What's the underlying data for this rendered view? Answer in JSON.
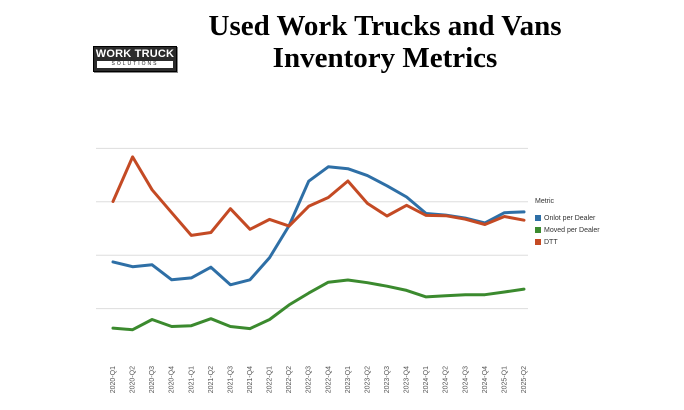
{
  "header": {
    "title_line1": "Used Work Trucks and Vans",
    "title_line2": "Inventory Metrics",
    "logo_line1": "WORK TRUCK",
    "logo_line2": "SOLUTIONS"
  },
  "colors": {
    "onlot": "#2e6fa6",
    "moved": "#3b8a2e",
    "dtt": "#c44a24",
    "grid": "#dddddd"
  },
  "chart_data": {
    "type": "line",
    "title": "Used Work Trucks and Vans Inventory Metrics",
    "categories": [
      "2020-Q1",
      "2020-Q2",
      "2020-Q3",
      "2020-Q4",
      "2021-Q1",
      "2021-Q2",
      "2021-Q3",
      "2021-Q4",
      "2022-Q1",
      "2022-Q2",
      "2022-Q3",
      "2022-Q4",
      "2023-Q1",
      "2023-Q2",
      "2023-Q3",
      "2023-Q4",
      "2024-Q1",
      "2024-Q2",
      "2024-Q3",
      "2024-Q4",
      "2025-Q1",
      "2025-Q2"
    ],
    "ylim": [
      0,
      100
    ],
    "gridlines": [
      20,
      40,
      60,
      80
    ],
    "grid": true,
    "legend": {
      "title": "Metric",
      "placement": "right"
    },
    "series": [
      {
        "name": "Onlot per Dealer",
        "color_key": "onlot",
        "values": [
          37.5,
          35.7,
          36.4,
          30.8,
          31.5,
          35.5,
          28.9,
          30.8,
          39.1,
          51.1,
          67.7,
          73.1,
          72.4,
          69.8,
          66.0,
          61.8,
          55.6,
          55.0,
          53.9,
          52.1,
          55.9,
          56.2
        ]
      },
      {
        "name": "Moved per Dealer",
        "color_key": "moved",
        "values": [
          12.7,
          12.1,
          15.9,
          13.3,
          13.6,
          16.2,
          13.3,
          12.5,
          15.9,
          21.4,
          25.8,
          29.9,
          30.7,
          29.7,
          28.4,
          26.8,
          24.4,
          24.8,
          25.2,
          25.2,
          26.2,
          27.3
        ]
      },
      {
        "name": "DTT",
        "color_key": "dtt",
        "values": [
          60.1,
          76.8,
          64.5,
          55.9,
          47.4,
          48.5,
          57.4,
          49.7,
          53.4,
          50.9,
          58.3,
          61.6,
          67.8,
          59.4,
          54.7,
          58.7,
          54.9,
          54.8,
          53.5,
          51.5,
          54.5,
          53.1
        ]
      }
    ]
  }
}
